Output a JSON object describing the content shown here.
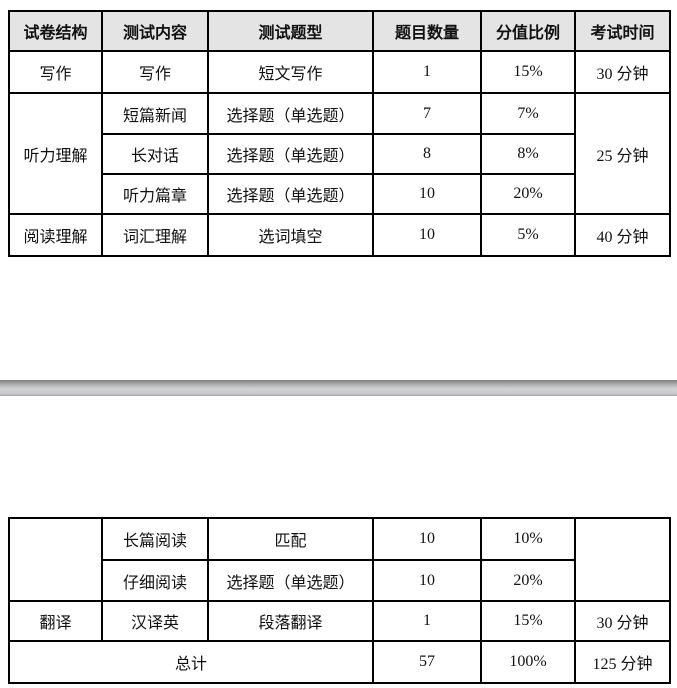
{
  "table_top": {
    "headers": [
      "试卷结构",
      "测试内容",
      "测试题型",
      "题目数量",
      "分值比例",
      "考试时间"
    ],
    "rows": [
      {
        "section": "写作",
        "content": "写作",
        "type": "短文写作",
        "count": "1",
        "ratio": "15%",
        "time": "30 分钟"
      },
      {
        "section": "听力理解",
        "content": "短篇新闻",
        "type": "选择题（单选题）",
        "count": "7",
        "ratio": "7%",
        "time": "25 分钟"
      },
      {
        "content": "长对话",
        "type": "选择题（单选题）",
        "count": "8",
        "ratio": "8%"
      },
      {
        "content": "听力篇章",
        "type": "选择题（单选题）",
        "count": "10",
        "ratio": "20%"
      },
      {
        "section": "阅读理解",
        "content": "词汇理解",
        "type": "选词填空",
        "count": "10",
        "ratio": "5%",
        "time": "40 分钟"
      }
    ]
  },
  "table_bottom": {
    "rows": [
      {
        "content": "长篇阅读",
        "type": "匹配",
        "count": "10",
        "ratio": "10%"
      },
      {
        "content": "仔细阅读",
        "type": "选择题（单选题）",
        "count": "10",
        "ratio": "20%"
      },
      {
        "section": "翻译",
        "content": "汉译英",
        "type": "段落翻译",
        "count": "1",
        "ratio": "15%",
        "time": "30 分钟"
      }
    ],
    "total": {
      "label": "总计",
      "count": "57",
      "ratio": "100%",
      "time": "125 分钟"
    }
  }
}
